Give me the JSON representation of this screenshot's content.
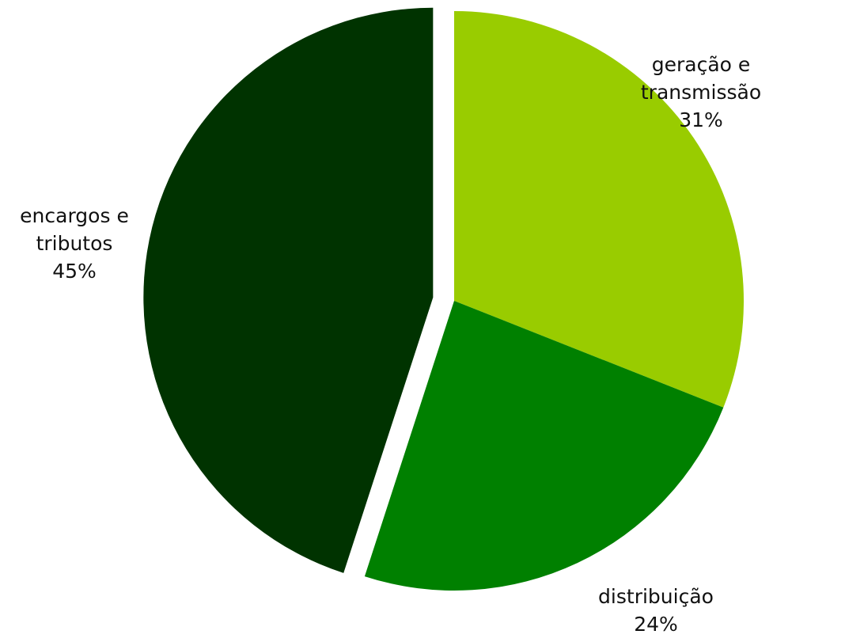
{
  "chart_data": {
    "type": "pie",
    "slices": [
      {
        "label_lines": [
          "geração e",
          "transmissão"
        ],
        "value": 31,
        "value_label": "31%",
        "color": "#99cc00",
        "exploded": false
      },
      {
        "label_lines": [
          "distribuição"
        ],
        "value": 24,
        "value_label": "24%",
        "color": "#008000",
        "exploded": false
      },
      {
        "label_lines": [
          "encargos e",
          "tributos"
        ],
        "value": 45,
        "value_label": "45%",
        "color": "#003300",
        "exploded": true
      }
    ],
    "start_angle": "12 o'clock",
    "direction": "clockwise",
    "legend": "none",
    "background": "#ffffff"
  }
}
